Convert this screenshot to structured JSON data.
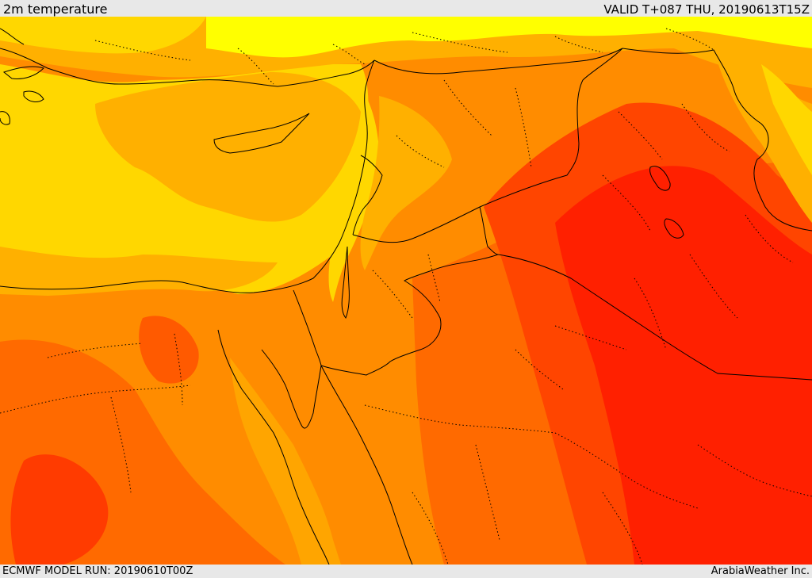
{
  "header": {
    "title": "2m temperature",
    "valid": "VALID T+087 THU, 20190613T15Z"
  },
  "footer": {
    "model_run": "ECMWF MODEL RUN: 20190610T00Z",
    "credit": "ArabiaWeather Inc."
  },
  "map": {
    "field": "2m temperature",
    "palette": {
      "yellow": "#ffff00",
      "gold": "#ffd700",
      "light_orange": "#ffb000",
      "orange": "#ff8c00",
      "dark_orange": "#ff6a00",
      "orange_red": "#ff4500",
      "red": "#ff2000"
    },
    "lines": {
      "coastline_color": "#000000",
      "border_color": "#000000",
      "admin_border_style": "dotted"
    }
  }
}
